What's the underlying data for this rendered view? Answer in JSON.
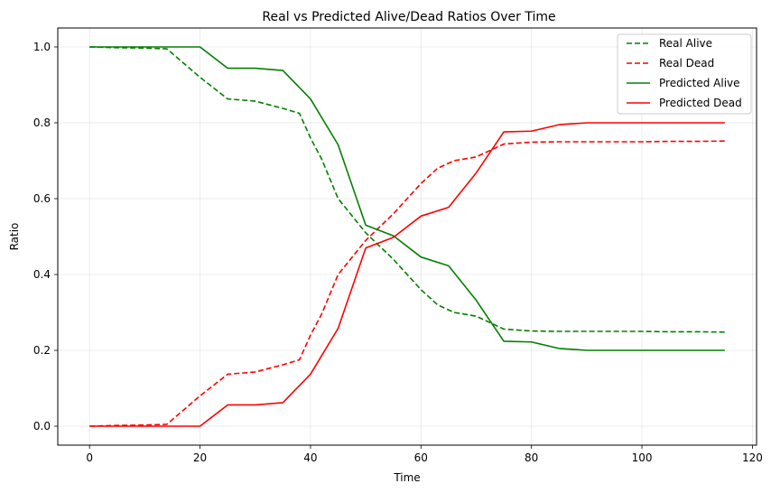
{
  "chart_data": {
    "type": "line",
    "title": "Real vs Predicted Alive/Dead Ratios Over Time",
    "xlabel": "Time",
    "ylabel": "Ratio",
    "xlim": [
      -5.75,
      120.75
    ],
    "ylim": [
      -0.05,
      1.05
    ],
    "xticks": [
      0,
      20,
      40,
      60,
      80,
      100,
      120
    ],
    "yticks": [
      0.0,
      0.2,
      0.4,
      0.6,
      0.8,
      1.0
    ],
    "xtick_labels": [
      "0",
      "20",
      "40",
      "60",
      "80",
      "100",
      "120"
    ],
    "ytick_labels": [
      "0.0",
      "0.2",
      "0.4",
      "0.6",
      "0.8",
      "1.0"
    ],
    "grid": true,
    "legend_position": "top-right",
    "series": [
      {
        "name": "Real Alive",
        "color": "#008000",
        "dash": "dashed",
        "x": [
          0,
          5,
          10,
          14,
          20,
          25,
          30,
          35,
          38,
          40,
          42,
          45,
          50,
          55,
          60,
          63,
          66,
          70,
          75,
          80,
          85,
          90,
          95,
          100,
          105,
          110,
          115
        ],
        "y": [
          1.0,
          0.998,
          0.997,
          0.995,
          0.92,
          0.863,
          0.857,
          0.838,
          0.825,
          0.76,
          0.705,
          0.6,
          0.51,
          0.44,
          0.36,
          0.32,
          0.3,
          0.29,
          0.256,
          0.251,
          0.25,
          0.25,
          0.25,
          0.25,
          0.249,
          0.249,
          0.248
        ]
      },
      {
        "name": "Real Dead",
        "color": "#ff0000",
        "dash": "dashed",
        "x": [
          0,
          5,
          10,
          14,
          20,
          25,
          30,
          35,
          38,
          40,
          42,
          45,
          50,
          55,
          60,
          63,
          66,
          70,
          75,
          80,
          85,
          90,
          95,
          100,
          105,
          110,
          115
        ],
        "y": [
          0.0,
          0.002,
          0.003,
          0.005,
          0.08,
          0.137,
          0.143,
          0.162,
          0.175,
          0.24,
          0.295,
          0.4,
          0.49,
          0.56,
          0.64,
          0.68,
          0.7,
          0.71,
          0.744,
          0.749,
          0.75,
          0.75,
          0.75,
          0.75,
          0.751,
          0.751,
          0.752
        ]
      },
      {
        "name": "Predicted Alive",
        "color": "#008000",
        "dash": "solid",
        "x": [
          0,
          5,
          10,
          15,
          20,
          25,
          30,
          35,
          40,
          45,
          50,
          55,
          60,
          65,
          70,
          75,
          80,
          85,
          90,
          95,
          100,
          105,
          110,
          115
        ],
        "y": [
          1.0,
          1.0,
          1.0,
          1.0,
          1.0,
          0.944,
          0.944,
          0.938,
          0.863,
          0.742,
          0.53,
          0.502,
          0.446,
          0.423,
          0.332,
          0.224,
          0.222,
          0.205,
          0.2,
          0.2,
          0.2,
          0.2,
          0.2,
          0.2
        ]
      },
      {
        "name": "Predicted Dead",
        "color": "#ff0000",
        "dash": "solid",
        "x": [
          0,
          5,
          10,
          15,
          20,
          25,
          30,
          35,
          40,
          45,
          50,
          55,
          60,
          65,
          70,
          75,
          80,
          85,
          90,
          95,
          100,
          105,
          110,
          115
        ],
        "y": [
          0.0,
          0.0,
          0.0,
          0.0,
          0.0,
          0.056,
          0.056,
          0.062,
          0.137,
          0.258,
          0.47,
          0.498,
          0.554,
          0.577,
          0.668,
          0.776,
          0.778,
          0.795,
          0.8,
          0.8,
          0.8,
          0.8,
          0.8,
          0.8
        ]
      }
    ]
  }
}
